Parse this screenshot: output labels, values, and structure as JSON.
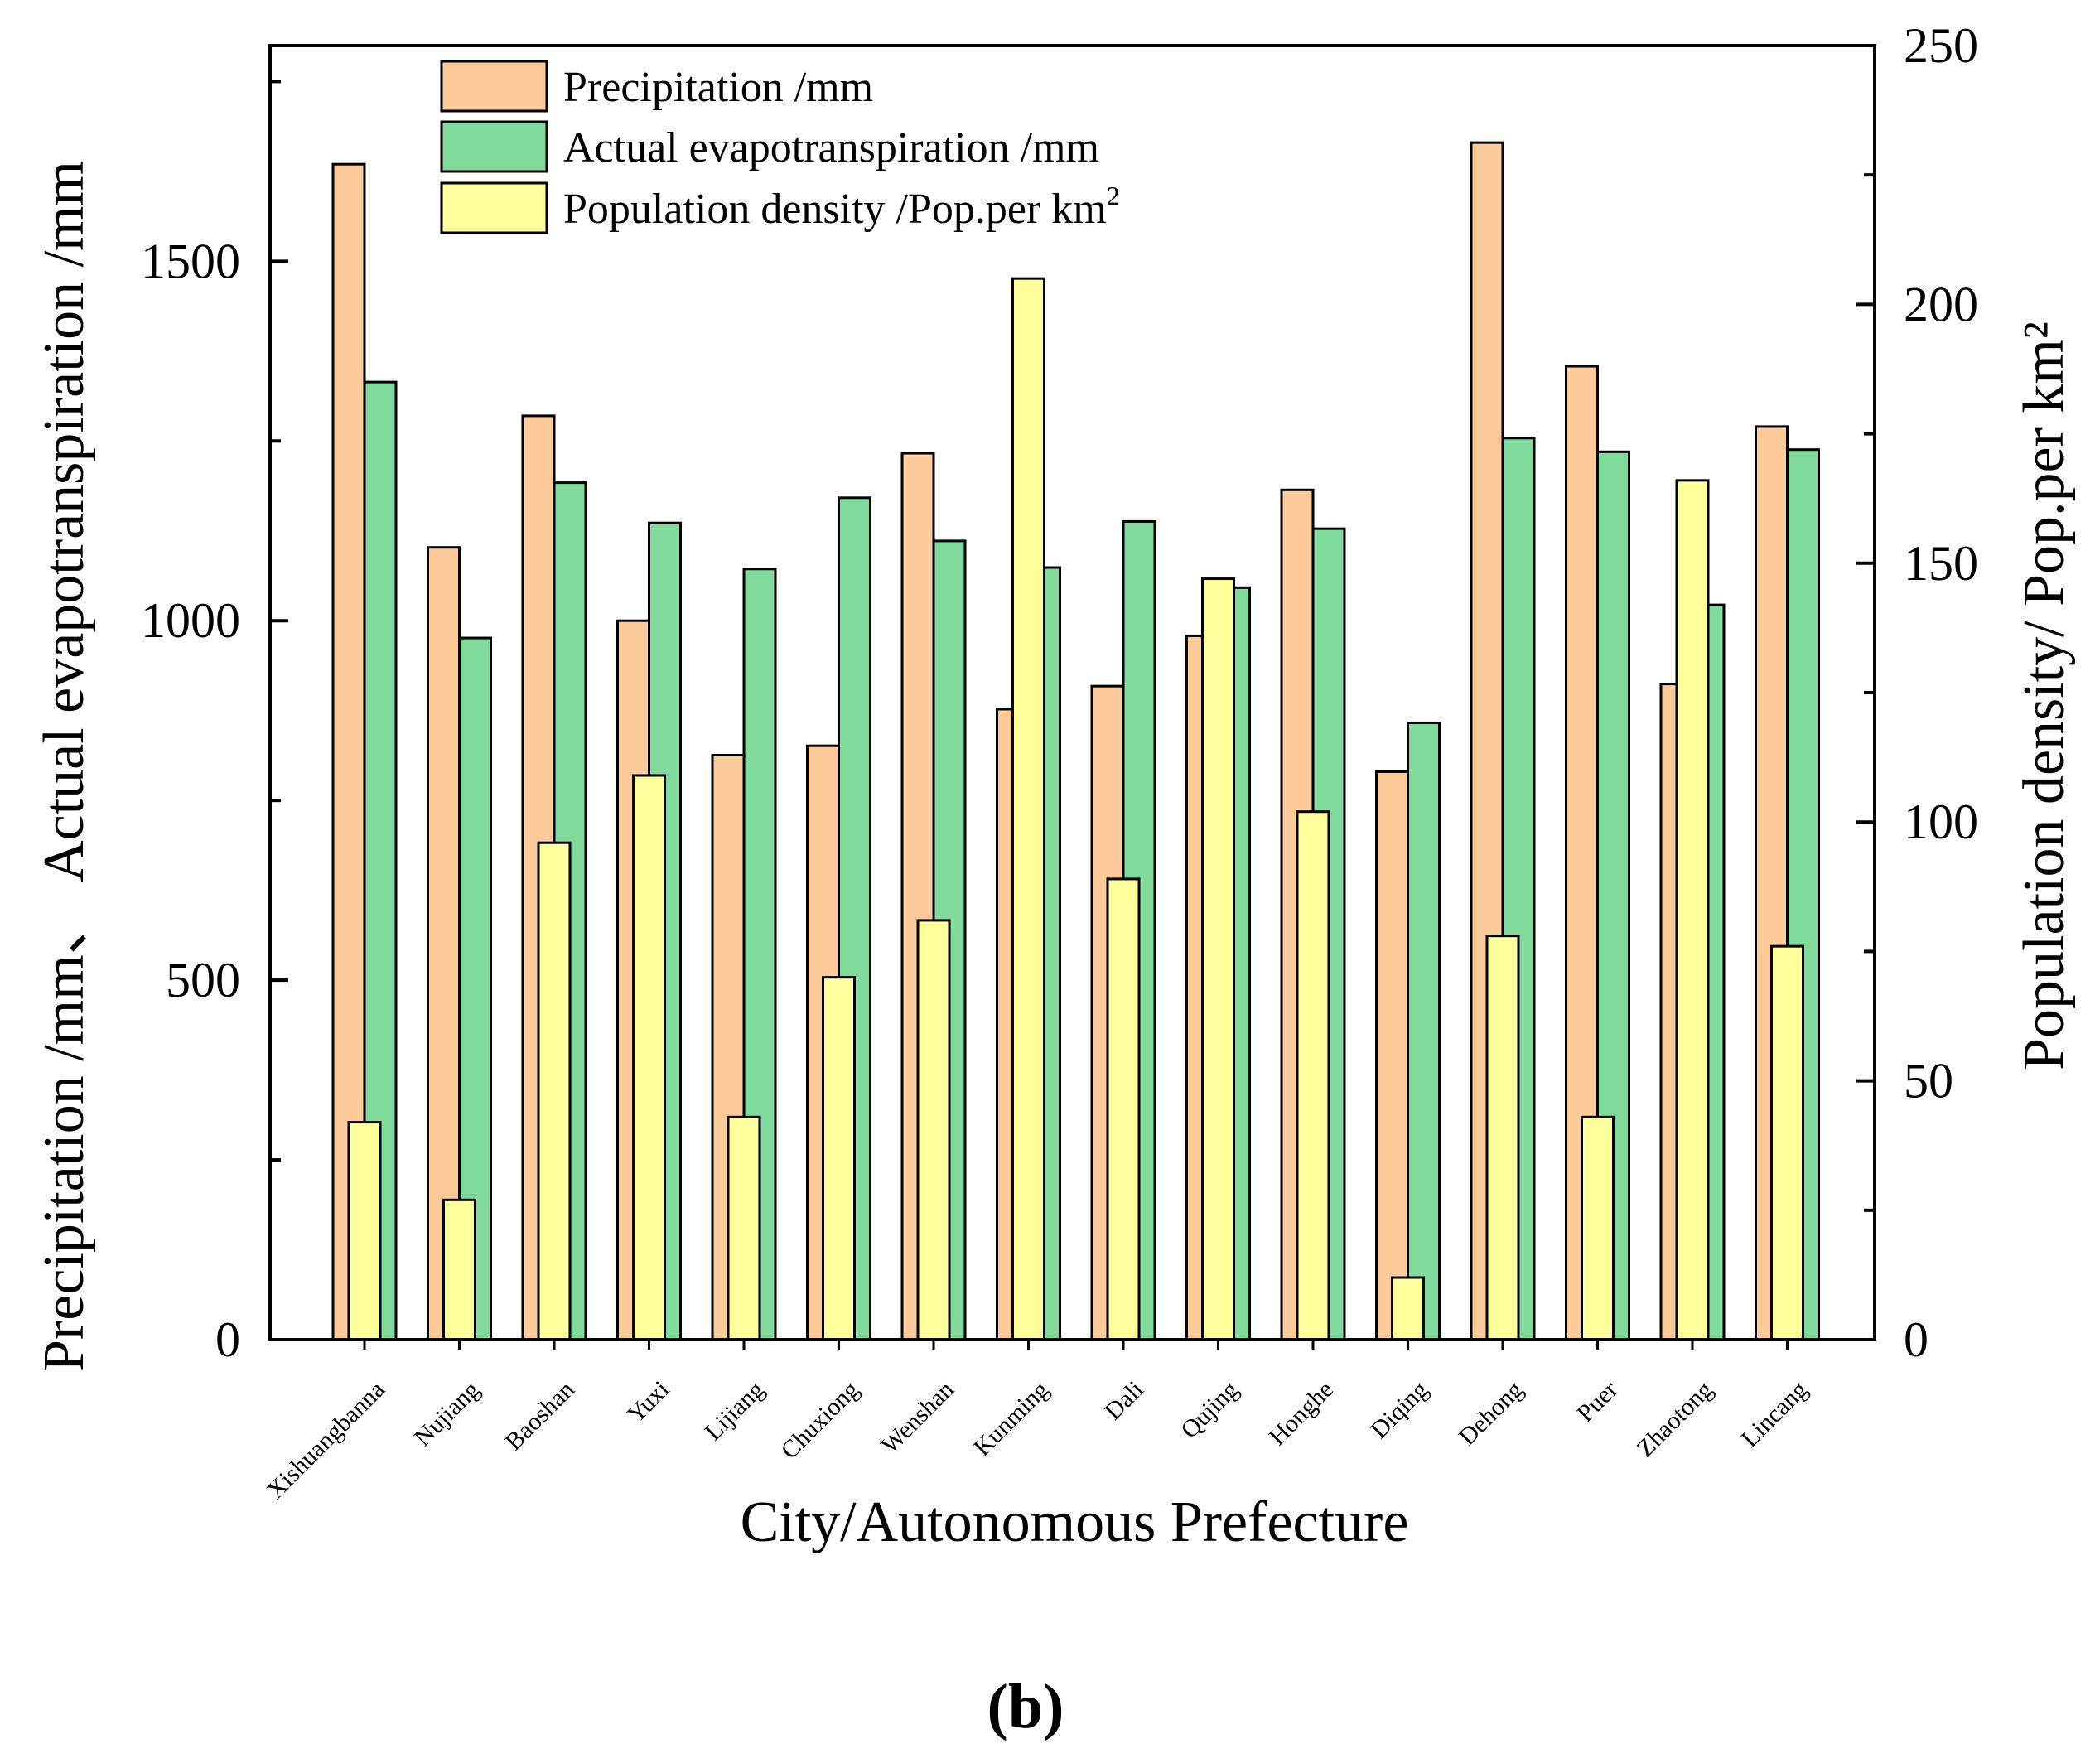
{
  "chart_data": {
    "type": "bar",
    "xlabel": "City/Autonomous Prefecture",
    "ylabel_left": "Precipitation /mm、 Actual evapotranspiration /mm",
    "ylabel_right": "Population density/ Pop.per km²",
    "ylim_left": [
      0,
      1800
    ],
    "ylim_right": [
      0,
      250
    ],
    "left_ticks": [
      "0",
      "500",
      "1000",
      "1500"
    ],
    "right_ticks": [
      "0",
      "50",
      "100",
      "150",
      "200",
      "250"
    ],
    "categories": [
      "Xishuangbanna",
      "Nujiang",
      "Baoshan",
      "Yuxi",
      "Lijiang",
      "Chuxiong",
      "Wenshan",
      "Kunming",
      "Dali",
      "Qujing",
      "Honghe",
      "Diqing",
      "Dehong",
      "Puer",
      "Zhaotong",
      "Lincang"
    ],
    "series": [
      {
        "name": "Precipitation /mm",
        "axis": "left",
        "color": "#FDCB9A",
        "values": [
          1635,
          1102,
          1285,
          1000,
          813,
          826,
          1233,
          877,
          909,
          979,
          1182,
          790,
          1665,
          1354,
          912,
          1270
        ]
      },
      {
        "name": "Actual evapotranspiration /mm",
        "axis": "left",
        "color": "#7FDA9C",
        "values": [
          1332,
          976,
          1192,
          1136,
          1072,
          1171,
          1111,
          1074,
          1138,
          1046,
          1128,
          858,
          1254,
          1235,
          1022,
          1238
        ]
      },
      {
        "name": "Population density /Pop.per km2",
        "axis": "right",
        "color": "#FFFF9C",
        "values": [
          42,
          27,
          96,
          109,
          43,
          70,
          81,
          205,
          89,
          147,
          102,
          12,
          78,
          43,
          166,
          76
        ]
      }
    ],
    "legend": [
      {
        "label": "Precipitation /mm",
        "color": "#FDCB9A"
      },
      {
        "label": "Actual evapotranspiration /mm",
        "color": "#7FDA9C"
      },
      {
        "label": "Population density /Pop.per km",
        "sup": "2",
        "color": "#FFFF9C"
      }
    ],
    "legend_position": "top-left"
  },
  "caption": "(b)"
}
